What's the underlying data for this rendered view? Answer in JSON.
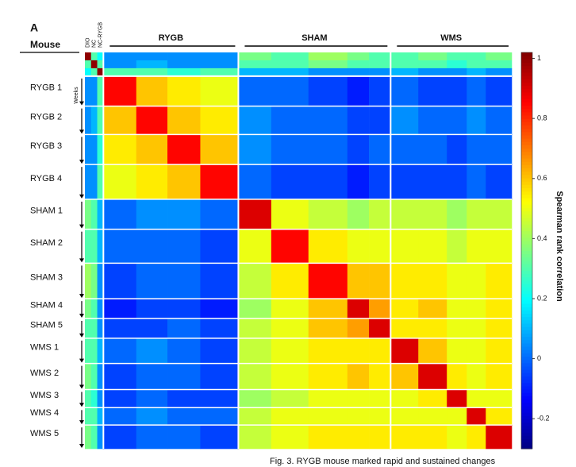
{
  "chart_data": {
    "type": "heatmap",
    "panel_label": "A",
    "row_header": "Mouse",
    "row_note": "Weeks",
    "column_groups": [
      "RYGB",
      "SHAM",
      "WMS"
    ],
    "categories": [
      "DIO",
      "NC",
      "NC-RYGB",
      "RYGB 1",
      "RYGB 2",
      "RYGB 3",
      "RYGB 4",
      "SHAM 1",
      "SHAM 2",
      "SHAM 3",
      "SHAM 4",
      "SHAM 5",
      "WMS 1",
      "WMS 2",
      "WMS 3",
      "WMS 4",
      "WMS 5"
    ],
    "colormap": "jet",
    "values": [
      [
        1,
        0.3,
        0.2,
        0.05,
        0.05,
        0.05,
        0.05,
        0.35,
        0.3,
        0.4,
        0.35,
        0.3,
        0.3,
        0.35,
        0.3,
        0.3,
        0.35
      ],
      [
        0.3,
        1,
        0.3,
        0.05,
        0.1,
        0.05,
        0.05,
        0.3,
        0.3,
        0.35,
        0.3,
        0.3,
        0.3,
        0.3,
        0.25,
        0.3,
        0.3
      ],
      [
        0.2,
        0.3,
        1,
        0.3,
        0.3,
        0.25,
        0.3,
        0.1,
        0.1,
        0.05,
        0.05,
        0.05,
        0.1,
        0.05,
        0.05,
        0.1,
        0.05
      ],
      [
        0.05,
        0.05,
        0.3,
        0.85,
        0.6,
        0.55,
        0.5,
        0,
        0,
        -0.05,
        -0.1,
        -0.05,
        0,
        -0.05,
        -0.05,
        0,
        -0.05
      ],
      [
        0.05,
        0.1,
        0.3,
        0.6,
        0.85,
        0.6,
        0.55,
        0.05,
        0,
        0,
        -0.05,
        -0.05,
        0.05,
        0,
        0,
        0.05,
        0
      ],
      [
        0.05,
        0.05,
        0.25,
        0.55,
        0.6,
        0.85,
        0.6,
        0.05,
        0,
        0,
        -0.05,
        0,
        0,
        0,
        -0.05,
        0,
        0
      ],
      [
        0.05,
        0.05,
        0.3,
        0.5,
        0.55,
        0.6,
        0.85,
        0,
        -0.05,
        -0.05,
        -0.1,
        -0.05,
        -0.05,
        -0.05,
        -0.05,
        0,
        -0.05
      ],
      [
        0.35,
        0.3,
        0.1,
        0,
        0.05,
        0.05,
        0,
        0.9,
        0.5,
        0.45,
        0.4,
        0.45,
        0.45,
        0.45,
        0.4,
        0.45,
        0.45
      ],
      [
        0.3,
        0.3,
        0.1,
        0,
        0,
        0,
        -0.05,
        0.5,
        0.85,
        0.55,
        0.5,
        0.5,
        0.5,
        0.5,
        0.45,
        0.5,
        0.5
      ],
      [
        0.4,
        0.35,
        0.05,
        -0.05,
        0,
        0,
        -0.05,
        0.45,
        0.55,
        0.85,
        0.6,
        0.6,
        0.55,
        0.55,
        0.5,
        0.5,
        0.55
      ],
      [
        0.35,
        0.3,
        0.05,
        -0.1,
        -0.05,
        -0.05,
        -0.1,
        0.4,
        0.5,
        0.6,
        0.9,
        0.65,
        0.55,
        0.6,
        0.5,
        0.5,
        0.55
      ],
      [
        0.3,
        0.3,
        0.05,
        -0.05,
        -0.05,
        0,
        -0.05,
        0.45,
        0.5,
        0.6,
        0.65,
        0.9,
        0.55,
        0.55,
        0.5,
        0.5,
        0.55
      ],
      [
        0.3,
        0.3,
        0.1,
        0,
        0.05,
        0,
        -0.05,
        0.45,
        0.5,
        0.55,
        0.55,
        0.55,
        0.9,
        0.6,
        0.5,
        0.5,
        0.55
      ],
      [
        0.35,
        0.3,
        0.05,
        -0.05,
        0,
        0,
        -0.05,
        0.45,
        0.5,
        0.55,
        0.6,
        0.55,
        0.6,
        0.9,
        0.55,
        0.5,
        0.55
      ],
      [
        0.3,
        0.25,
        0.05,
        -0.05,
        0,
        -0.05,
        -0.05,
        0.4,
        0.45,
        0.5,
        0.5,
        0.5,
        0.5,
        0.55,
        0.9,
        0.5,
        0.5
      ],
      [
        0.3,
        0.3,
        0.1,
        0,
        0.05,
        0,
        0,
        0.45,
        0.5,
        0.5,
        0.5,
        0.5,
        0.5,
        0.5,
        0.5,
        0.9,
        0.55
      ],
      [
        0.35,
        0.3,
        0.05,
        -0.05,
        0,
        0,
        -0.05,
        0.45,
        0.5,
        0.55,
        0.55,
        0.55,
        0.55,
        0.55,
        0.5,
        0.55,
        0.9
      ]
    ],
    "colorbar": {
      "label": "Spearman rank correlation",
      "lim": [
        -0.3,
        1.02
      ],
      "ticks": [
        1,
        0.8,
        0.6,
        0.4,
        0.2,
        0,
        -0.2
      ]
    },
    "caption": "Fig. 3. RYGB mouse marked rapid and sustained changes"
  }
}
